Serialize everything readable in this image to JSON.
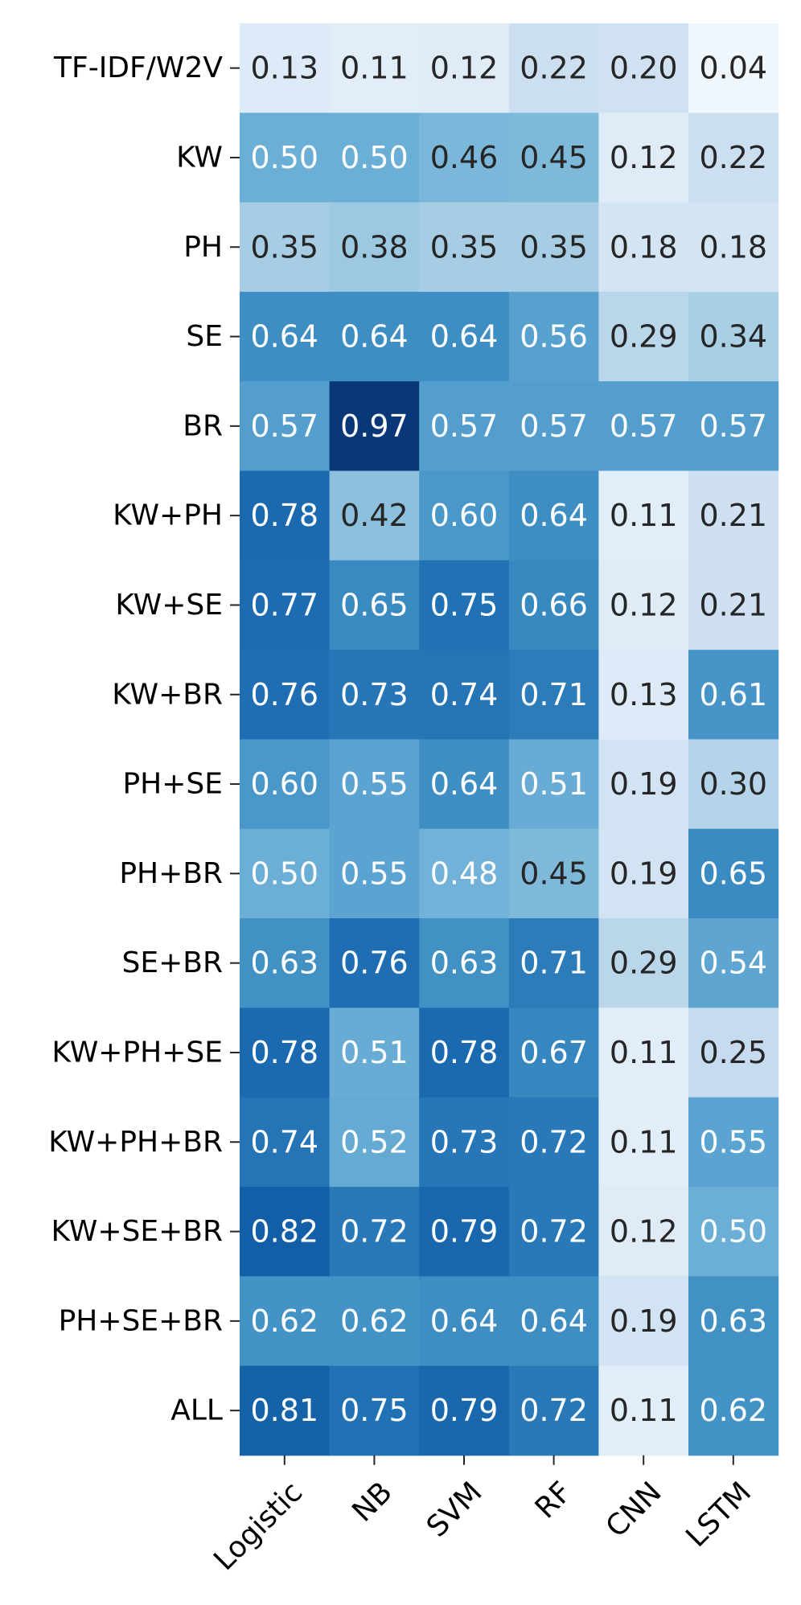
{
  "chart_data": {
    "type": "heatmap",
    "title": "",
    "xlabel": "",
    "ylabel": "",
    "colormap": "Blues",
    "color_range": [
      0.0,
      1.0
    ],
    "x_categories": [
      "Logistic",
      "NB",
      "SVM",
      "RF",
      "CNN",
      "LSTM"
    ],
    "y_categories": [
      "TF-IDF/W2V",
      "KW",
      "PH",
      "SE",
      "BR",
      "KW+PH",
      "KW+SE",
      "KW+BR",
      "PH+SE",
      "PH+BR",
      "SE+BR",
      "KW+PH+SE",
      "KW+PH+BR",
      "KW+SE+BR",
      "PH+SE+BR",
      "ALL"
    ],
    "values": [
      [
        0.13,
        0.11,
        0.12,
        0.22,
        0.2,
        0.04
      ],
      [
        0.5,
        0.5,
        0.46,
        0.45,
        0.12,
        0.22
      ],
      [
        0.35,
        0.38,
        0.35,
        0.35,
        0.18,
        0.18
      ],
      [
        0.64,
        0.64,
        0.64,
        0.56,
        0.29,
        0.34
      ],
      [
        0.57,
        0.97,
        0.57,
        0.57,
        0.57,
        0.57
      ],
      [
        0.78,
        0.42,
        0.6,
        0.64,
        0.11,
        0.21
      ],
      [
        0.77,
        0.65,
        0.75,
        0.66,
        0.12,
        0.21
      ],
      [
        0.76,
        0.73,
        0.74,
        0.71,
        0.13,
        0.61
      ],
      [
        0.6,
        0.55,
        0.64,
        0.51,
        0.19,
        0.3
      ],
      [
        0.5,
        0.55,
        0.48,
        0.45,
        0.19,
        0.65
      ],
      [
        0.63,
        0.76,
        0.63,
        0.71,
        0.29,
        0.54
      ],
      [
        0.78,
        0.51,
        0.78,
        0.67,
        0.11,
        0.25
      ],
      [
        0.74,
        0.52,
        0.73,
        0.72,
        0.11,
        0.55
      ],
      [
        0.82,
        0.72,
        0.79,
        0.72,
        0.12,
        0.5
      ],
      [
        0.62,
        0.62,
        0.64,
        0.64,
        0.19,
        0.63
      ],
      [
        0.81,
        0.75,
        0.79,
        0.72,
        0.11,
        0.62
      ]
    ],
    "value_format": "0.00",
    "annotations": true,
    "colorbar": false
  }
}
